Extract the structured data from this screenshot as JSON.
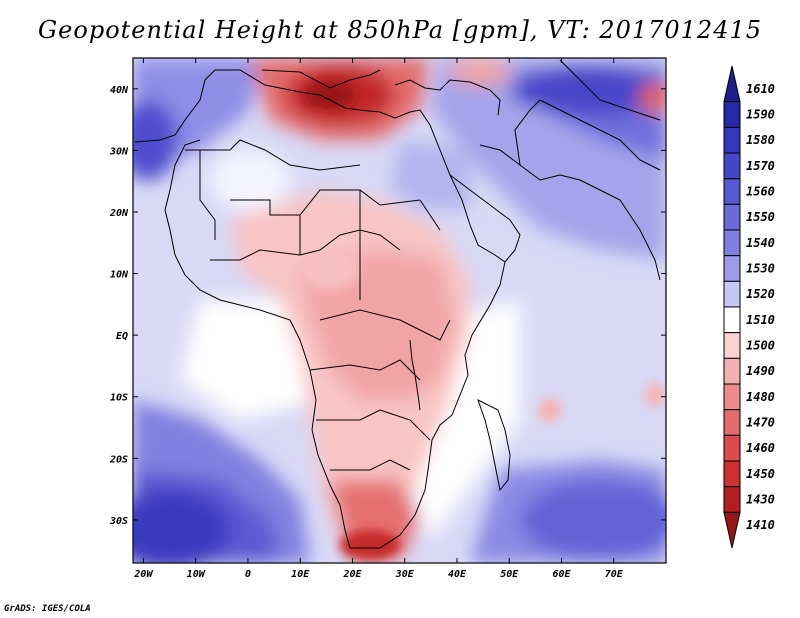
{
  "title": "Geopotential Height at 850hPa [gpm], VT: 2017012415",
  "credit": "GrADS: IGES/COLA",
  "map": {
    "lon_range": [
      -22,
      80
    ],
    "lat_range": [
      -37,
      45
    ],
    "lon_ticks": [
      {
        "value": -20,
        "label": "20W"
      },
      {
        "value": -10,
        "label": "10W"
      },
      {
        "value": 0,
        "label": "0"
      },
      {
        "value": 10,
        "label": "10E"
      },
      {
        "value": 20,
        "label": "20E"
      },
      {
        "value": 30,
        "label": "30E"
      },
      {
        "value": 40,
        "label": "40E"
      },
      {
        "value": 50,
        "label": "50E"
      },
      {
        "value": 60,
        "label": "60E"
      },
      {
        "value": 70,
        "label": "70E"
      }
    ],
    "lat_ticks": [
      {
        "value": 40,
        "label": "40N"
      },
      {
        "value": 30,
        "label": "30N"
      },
      {
        "value": 20,
        "label": "20N"
      },
      {
        "value": 10,
        "label": "10N"
      },
      {
        "value": 0,
        "label": "EQ"
      },
      {
        "value": -10,
        "label": "10S"
      },
      {
        "value": -20,
        "label": "20S"
      },
      {
        "value": -30,
        "label": "30S"
      }
    ],
    "colorbar": {
      "levels": [
        "1610",
        "1590",
        "1580",
        "1570",
        "1560",
        "1550",
        "1540",
        "1530",
        "1520",
        "1510",
        "1500",
        "1490",
        "1480",
        "1470",
        "1460",
        "1450",
        "1430",
        "1410"
      ],
      "colors": [
        "#1e1e8c",
        "#2828a8",
        "#3737bd",
        "#4646c9",
        "#5757d2",
        "#6a6ad9",
        "#8080e0",
        "#9c9ce8",
        "#c6c6f2",
        "#ffffff",
        "#fad2d2",
        "#f3b0b0",
        "#ec8c8c",
        "#e46c6c",
        "#dc4c4c",
        "#cc3030",
        "#b41e1e",
        "#961414"
      ]
    }
  }
}
